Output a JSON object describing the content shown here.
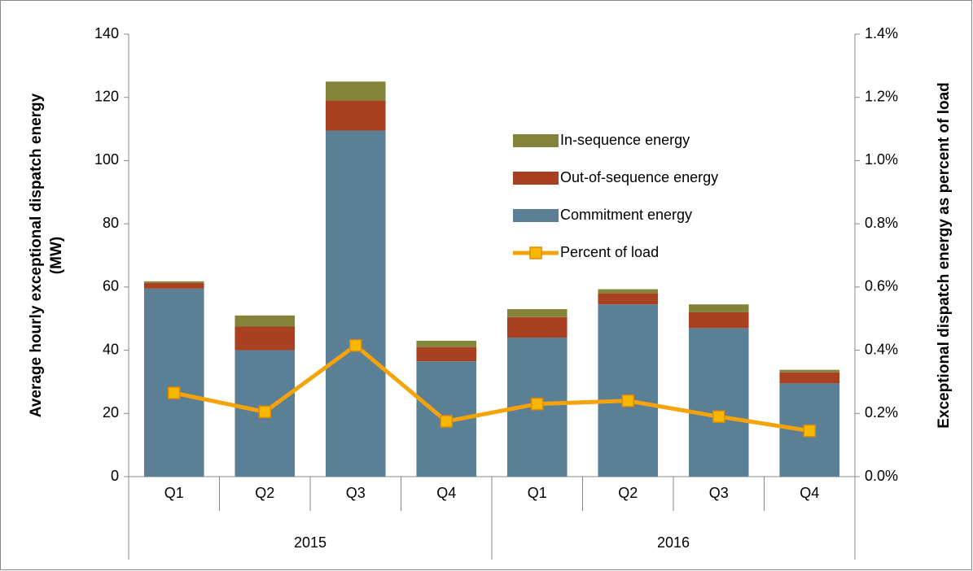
{
  "chart_data": {
    "type": "stacked_bar_line",
    "categories": [
      "Q1",
      "Q2",
      "Q3",
      "Q4",
      "Q1",
      "Q2",
      "Q3",
      "Q4"
    ],
    "group_labels": [
      "2015",
      "2016"
    ],
    "series": [
      {
        "name": "Commitment energy",
        "color": "#5b7f95",
        "values": [
          59.5,
          40,
          109.5,
          36.5,
          44,
          54.5,
          47,
          29.5
        ]
      },
      {
        "name": "Out-of-sequence energy",
        "color": "#a9401f",
        "values": [
          1.8,
          7.5,
          9.5,
          4.5,
          6.5,
          3.5,
          5,
          3.5
        ]
      },
      {
        "name": "In-sequence energy",
        "color": "#838339",
        "values": [
          0.5,
          3.5,
          6,
          2,
          2.5,
          1.3,
          2.5,
          0.8
        ]
      },
      {
        "name": "Percent of load",
        "color": "#f5a30a",
        "axis": "y2",
        "type": "line",
        "values": [
          0.265,
          0.205,
          0.415,
          0.175,
          0.23,
          0.24,
          0.19,
          0.145
        ]
      }
    ],
    "ylabel": [
      "Average hourly exceptional dispatch energy",
      "(MW)"
    ],
    "y2label": "Exceptional dispatch energy as percent of load",
    "ylim": [
      0,
      140
    ],
    "yticks": [
      0,
      20,
      40,
      60,
      80,
      100,
      120,
      140
    ],
    "y2lim": [
      0,
      1.4
    ],
    "y2ticks": [
      {
        "value": 0,
        "label": "0.0%"
      },
      {
        "value": 0.2,
        "label": "0.2%"
      },
      {
        "value": 0.4,
        "label": "0.4%"
      },
      {
        "value": 0.6,
        "label": "0.6%"
      },
      {
        "value": 0.8,
        "label": "0.8%"
      },
      {
        "value": 1.0,
        "label": "1.0%"
      },
      {
        "value": 1.2,
        "label": "1.2%"
      },
      {
        "value": 1.4,
        "label": "1.4%"
      }
    ],
    "legend": "top-center"
  }
}
